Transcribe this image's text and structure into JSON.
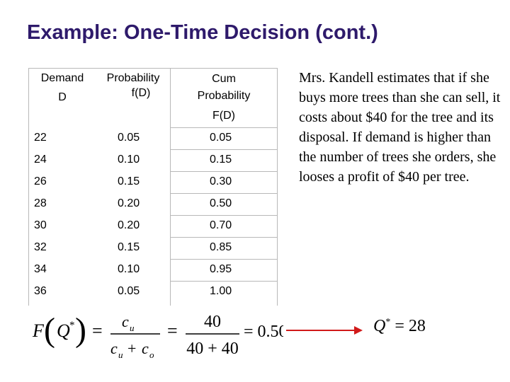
{
  "title": "Example: One-Time Decision (cont.)",
  "table": {
    "header": {
      "col1_line1": "Demand",
      "col1_line2": "D",
      "col2_line1": "Probability",
      "col2_line2": "f(D)",
      "col3_line1": "Cum",
      "col3_line2": "Probability",
      "col3_line3": "F(D)"
    },
    "rows": [
      {
        "demand": "22",
        "prob": "0.05",
        "cum": "0.05"
      },
      {
        "demand": "24",
        "prob": "0.10",
        "cum": "0.15"
      },
      {
        "demand": "26",
        "prob": "0.15",
        "cum": "0.30"
      },
      {
        "demand": "28",
        "prob": "0.20",
        "cum": "0.50"
      },
      {
        "demand": "30",
        "prob": "0.20",
        "cum": "0.70"
      },
      {
        "demand": "32",
        "prob": "0.15",
        "cum": "0.85"
      },
      {
        "demand": "34",
        "prob": "0.10",
        "cum": "0.95"
      },
      {
        "demand": "36",
        "prob": "0.05",
        "cum": "1.00"
      }
    ]
  },
  "formula": {
    "lhs_f": "F",
    "lhs_q": "Q",
    "star": "*",
    "equals": "=",
    "frac1_num_c": "c",
    "frac1_num_sub": "u",
    "frac1_den_c1": "c",
    "frac1_den_sub1": "u",
    "frac1_den_plus": "+",
    "frac1_den_c2": "c",
    "frac1_den_sub2": "o",
    "frac2_num": "40",
    "frac2_den": "40 + 40",
    "result": "= 0.50"
  },
  "result": {
    "q": "Q",
    "star": "*",
    "value": "= 28"
  },
  "note": "Mrs. Kandell estimates that if she buys more trees than she can sell, it costs about $40 for the tree and its disposal. If demand is higher than the number of trees she orders, she looses a profit of $40 per tree.",
  "colors": {
    "title": "#2e1a6b",
    "arrow": "#d11a1a",
    "grid": "#b8b8b8"
  }
}
